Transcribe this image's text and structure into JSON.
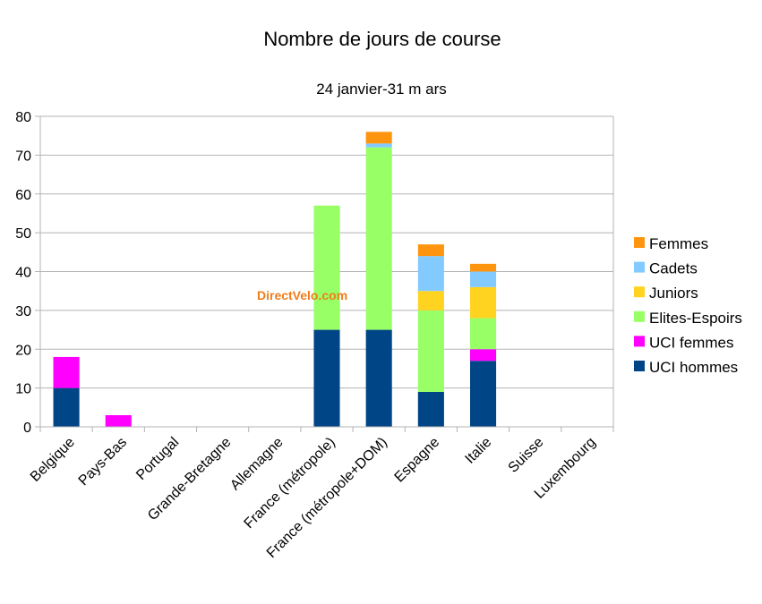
{
  "chart_data": {
    "type": "bar",
    "stacked": true,
    "title": "Nombre de jours de course",
    "subtitle": "24 janvier-31 m ars",
    "xlabel": "",
    "ylabel": "",
    "ylim": [
      0,
      80
    ],
    "yticks": [
      0,
      10,
      20,
      30,
      40,
      50,
      60,
      70,
      80
    ],
    "grid": true,
    "legend_position": "right",
    "watermark": "DirectVelo.com",
    "categories": [
      "Belgique",
      "Pays-Bas",
      "Portugal",
      "Grande-Bretagne",
      "Allemagne",
      "France (métropole)",
      "France (métropole+DOM)",
      "Espagne",
      "Italie",
      "Suisse",
      "Luxembourg"
    ],
    "series": [
      {
        "name": "UCI hommes",
        "color": "#004586",
        "values": [
          10,
          0,
          0,
          0,
          0,
          25,
          25,
          9,
          17,
          0,
          0
        ]
      },
      {
        "name": "UCI femmes",
        "color": "#ff00ff",
        "values": [
          8,
          3,
          0,
          0,
          0,
          0,
          0,
          0,
          3,
          0,
          0
        ]
      },
      {
        "name": "Elites-Espoirs",
        "color": "#99ff66",
        "values": [
          0,
          0,
          0,
          0,
          0,
          32,
          47,
          21,
          8,
          0,
          0
        ]
      },
      {
        "name": "Juniors",
        "color": "#ffd320",
        "values": [
          0,
          0,
          0,
          0,
          0,
          0,
          0,
          5,
          8,
          0,
          0
        ]
      },
      {
        "name": "Cadets",
        "color": "#83caff",
        "values": [
          0,
          0,
          0,
          0,
          0,
          0,
          1,
          9,
          4,
          0,
          0
        ]
      },
      {
        "name": "Femmes",
        "color": "#ff950e",
        "values": [
          0,
          0,
          0,
          0,
          0,
          0,
          3,
          3,
          2,
          0,
          0
        ]
      }
    ]
  }
}
